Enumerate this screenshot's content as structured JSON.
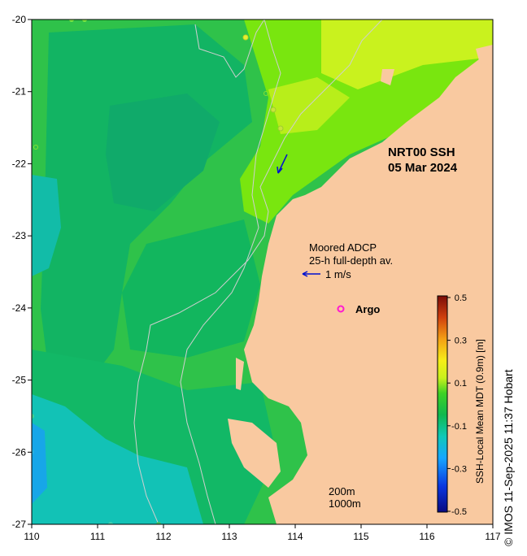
{
  "map": {
    "title_line1": "NRT00 SSH",
    "title_line2": "05 Mar 2024",
    "x_ticks": [
      "110",
      "111",
      "112",
      "113",
      "114",
      "115",
      "116",
      "117"
    ],
    "y_ticks": [
      "-20",
      "-21",
      "-22",
      "-23",
      "-24",
      "-25",
      "-26",
      "-27"
    ],
    "extent": {
      "lon": [
        110,
        117
      ],
      "lat": [
        -27,
        -20
      ]
    },
    "colors": {
      "land": "#f9c9a0",
      "ocean_main": "#2fc24a",
      "ocean_deep": "#10b46a",
      "ocean_low": "#12c2b6",
      "ocean_high": "#c9f21e",
      "ocean_mid_high": "#79e60f"
    }
  },
  "legend": {
    "adcp_line1": "Moored ADCP",
    "adcp_line2": "25-h full-depth av.",
    "arrow_label": "1 m/s",
    "argo_label": "Argo",
    "isobath_1": "200m",
    "isobath_2": "1000m"
  },
  "colorbar": {
    "label": "SSH-Local Mean MDT (0.9m) [m]",
    "ticks": [
      "0.5",
      "0.3",
      "0.1",
      "-0.1",
      "-0.3",
      "-0.5"
    ],
    "range": [
      -0.5,
      0.5
    ]
  },
  "credit": "© IMOS 11-Sep-2025 11:37 Hobart"
}
